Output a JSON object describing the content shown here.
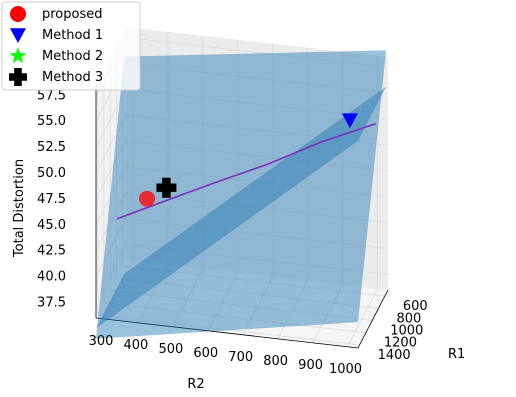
{
  "chart_data": {
    "type": "3d-surface-line",
    "title": "",
    "xlabel": "R1",
    "ylabel": "R2",
    "zlabel": "Total Distortion",
    "xticks": [
      600,
      800,
      1000,
      1200,
      1400
    ],
    "yticks": [
      300,
      400,
      500,
      600,
      700,
      800,
      900,
      1000
    ],
    "zticks": [
      "37.5",
      "40.0",
      "42.5",
      "45.0",
      "47.5",
      "50.0",
      "52.5",
      "55.0",
      "57.5"
    ],
    "xlim": [
      500,
      1450
    ],
    "ylim": [
      280,
      1030
    ],
    "zlim": [
      36,
      58.5
    ],
    "surfaces": [
      {
        "name": "plane-1",
        "color": "#1f77b4",
        "alpha": 0.45,
        "corners": [
          [
            560,
            1030,
            59.5
          ],
          [
            1450,
            1030,
            38.5
          ],
          [
            1450,
            280,
            34
          ],
          [
            560,
            280,
            56
          ]
        ]
      },
      {
        "name": "plane-2",
        "color": "#1f77b4",
        "alpha": 0.45,
        "corners": [
          [
            560,
            1030,
            56
          ],
          [
            1450,
            1030,
            56
          ],
          [
            1450,
            280,
            35
          ],
          [
            560,
            280,
            35
          ]
        ]
      }
    ],
    "line": {
      "color": "#7b2fbe",
      "points": [
        [
          1000,
          300,
          43
        ],
        [
          900,
          420,
          44.5
        ],
        [
          800,
          560,
          46.3
        ],
        [
          700,
          700,
          48
        ],
        [
          620,
          850,
          50.3
        ],
        [
          560,
          1000,
          52.3
        ]
      ]
    },
    "markers": [
      {
        "name": "proposed",
        "color": "#ff0000",
        "shape": "circle",
        "point": [
          940,
          380,
          44.9
        ]
      },
      {
        "name": "Method 1",
        "color": "#0000ff",
        "shape": "triangle-down",
        "point": [
          600,
          930,
          52.6
        ]
      },
      {
        "name": "Method 2",
        "color": "#00ff00",
        "shape": "star",
        "point": [
          880,
          430,
          45.8
        ]
      },
      {
        "name": "Method 3",
        "color": "#000000",
        "shape": "plus",
        "point": [
          880,
          430,
          45.8
        ]
      }
    ],
    "legend": {
      "position": "top-left",
      "entries": [
        {
          "label": "proposed",
          "color": "#ff0000",
          "shape": "circle"
        },
        {
          "label": "Method 1",
          "color": "#0000ff",
          "shape": "triangle-down"
        },
        {
          "label": "Method 2",
          "color": "#00ff00",
          "shape": "star"
        },
        {
          "label": "Method 3",
          "color": "#000000",
          "shape": "plus"
        }
      ]
    },
    "grid": true
  }
}
